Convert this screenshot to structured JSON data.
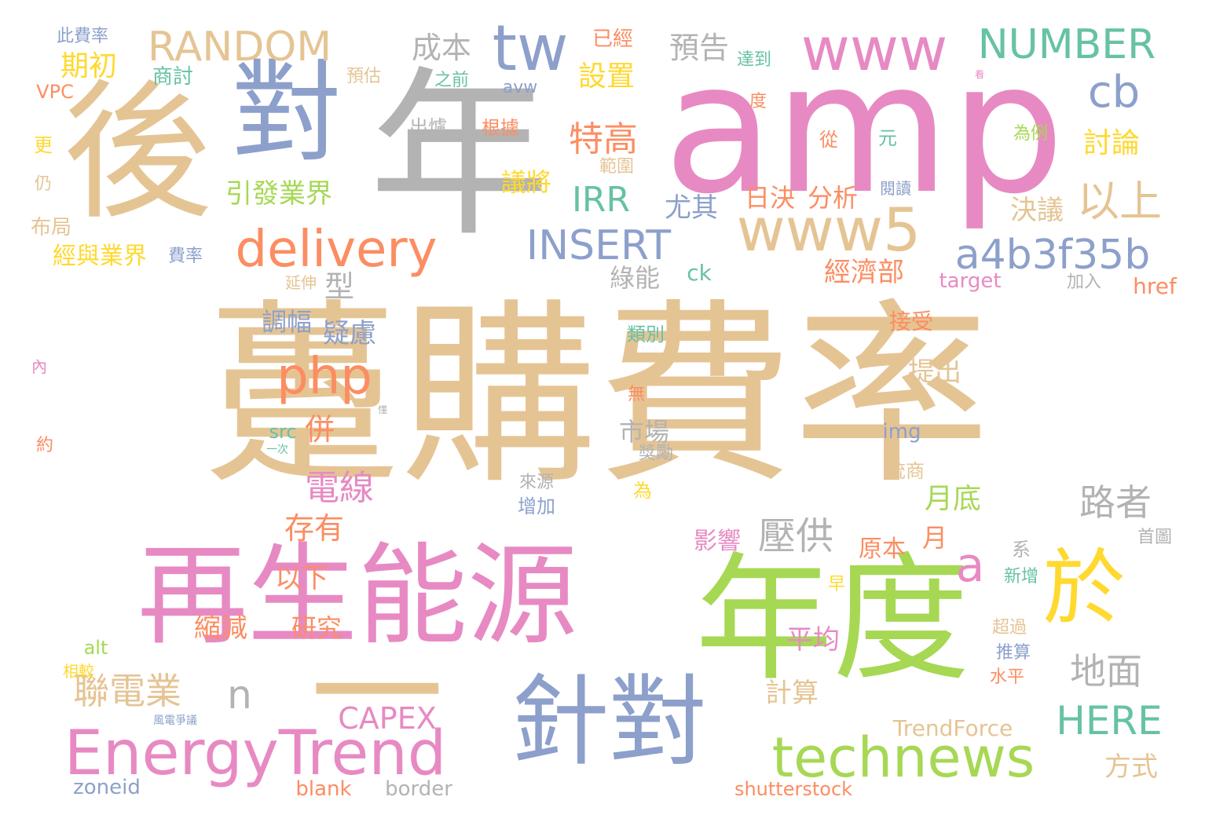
{
  "palette": {
    "tan": "#e5c494",
    "pink": "#e78ac3",
    "green": "#a6d854",
    "grey": "#b3b3b3",
    "blue": "#8da0cb",
    "orange": "#fc8d62",
    "yellow": "#ffd92f",
    "teal": "#66c2a5"
  },
  "words": [
    {
      "text": "躉購費率",
      "color": "tan",
      "rank": 1
    },
    {
      "text": "amp",
      "color": "pink",
      "rank": 2
    },
    {
      "text": "再生能源",
      "color": "pink",
      "rank": 3
    },
    {
      "text": "年",
      "color": "grey",
      "rank": 4
    },
    {
      "text": "年度",
      "color": "green",
      "rank": 5
    },
    {
      "text": "後",
      "color": "tan",
      "rank": 6
    },
    {
      "text": "一",
      "color": "tan",
      "rank": 7
    },
    {
      "text": "對",
      "color": "blue",
      "rank": 8
    },
    {
      "text": "針對",
      "color": "blue",
      "rank": 9
    },
    {
      "text": "於",
      "color": "yellow",
      "rank": 10
    },
    {
      "text": "EnergyTrend",
      "color": "pink",
      "rank": 11
    },
    {
      "text": "technews",
      "color": "green",
      "rank": 12
    },
    {
      "text": "www",
      "color": "pink",
      "rank": 13
    },
    {
      "text": "www5",
      "color": "tan",
      "rank": 14
    },
    {
      "text": "delivery",
      "color": "orange",
      "rank": 15
    },
    {
      "text": "tw",
      "color": "blue",
      "rank": 16
    },
    {
      "text": "RANDOM",
      "color": "tan",
      "rank": 17
    },
    {
      "text": "NUMBER",
      "color": "teal",
      "rank": 18
    },
    {
      "text": "a4b3f35b",
      "color": "blue",
      "rank": 19
    },
    {
      "text": "INSERT",
      "color": "blue",
      "rank": 20
    },
    {
      "text": "php",
      "color": "orange",
      "rank": 21
    },
    {
      "text": "以上",
      "color": "tan",
      "rank": 22
    },
    {
      "text": "HERE",
      "color": "teal",
      "rank": 23
    },
    {
      "text": "a",
      "color": "pink",
      "rank": 24
    },
    {
      "text": "cb",
      "color": "blue",
      "rank": 25
    },
    {
      "text": "IRR",
      "color": "teal",
      "rank": 26
    },
    {
      "text": "地面",
      "color": "grey",
      "rank": 27
    },
    {
      "text": "路者",
      "color": "grey",
      "rank": 28
    },
    {
      "text": "壓供",
      "color": "grey",
      "rank": 29
    },
    {
      "text": "特高",
      "color": "orange",
      "rank": 30
    },
    {
      "text": "電線",
      "color": "pink",
      "rank": 31
    },
    {
      "text": "聯電業",
      "color": "tan",
      "rank": 32
    },
    {
      "text": "n",
      "color": "grey",
      "rank": 33
    },
    {
      "text": "CAPEX",
      "color": "pink",
      "rank": 34
    },
    {
      "text": "成本",
      "color": "grey",
      "rank": 35
    },
    {
      "text": "預告",
      "color": "grey",
      "rank": 36
    },
    {
      "text": "設置",
      "color": "yellow",
      "rank": 37
    },
    {
      "text": "期初",
      "color": "yellow",
      "rank": 38
    },
    {
      "text": "引發業界",
      "color": "green",
      "rank": 39
    },
    {
      "text": "尤其",
      "color": "blue",
      "rank": 40
    },
    {
      "text": "型",
      "color": "grey",
      "rank": 41
    },
    {
      "text": "疑慮",
      "color": "blue",
      "rank": 42
    },
    {
      "text": "併",
      "color": "orange",
      "rank": 43
    },
    {
      "text": "存有",
      "color": "orange",
      "rank": 44
    },
    {
      "text": "以下",
      "color": "orange",
      "rank": 45
    },
    {
      "text": "月底",
      "color": "green",
      "rank": 46
    },
    {
      "text": "討論",
      "color": "yellow",
      "rank": 47
    },
    {
      "text": "決議",
      "color": "tan",
      "rank": 48
    },
    {
      "text": "經濟部",
      "color": "orange",
      "rank": 49
    },
    {
      "text": "日決",
      "color": "orange",
      "rank": 50
    },
    {
      "text": "分析",
      "color": "orange",
      "rank": 51
    },
    {
      "text": "議將",
      "color": "yellow",
      "rank": 52
    },
    {
      "text": "綠能",
      "color": "grey",
      "rank": 53
    },
    {
      "text": "調幅",
      "color": "blue",
      "rank": 54
    },
    {
      "text": "市場",
      "color": "grey",
      "rank": 55
    },
    {
      "text": "影響",
      "color": "pink",
      "rank": 56
    },
    {
      "text": "原本",
      "color": "orange",
      "rank": 57
    },
    {
      "text": "月",
      "color": "orange",
      "rank": 58
    },
    {
      "text": "縮減",
      "color": "orange",
      "rank": 59
    },
    {
      "text": "研究",
      "color": "orange",
      "rank": 60
    },
    {
      "text": "平均",
      "color": "pink",
      "rank": 61
    },
    {
      "text": "計算",
      "color": "tan",
      "rank": 62
    },
    {
      "text": "方式",
      "color": "tan",
      "rank": 63
    },
    {
      "text": "提出",
      "color": "tan",
      "rank": 64
    },
    {
      "text": "接受",
      "color": "orange",
      "rank": 65
    },
    {
      "text": "TrendForce",
      "color": "tan",
      "rank": 66
    },
    {
      "text": "經與業界",
      "color": "yellow",
      "rank": 67
    },
    {
      "text": "商討",
      "color": "teal",
      "rank": 68
    },
    {
      "text": "已經",
      "color": "orange",
      "rank": 69
    },
    {
      "text": "此費率",
      "color": "blue",
      "rank": 70
    },
    {
      "text": "預估",
      "color": "tan",
      "rank": 71
    },
    {
      "text": "之前",
      "color": "teal",
      "rank": 72
    },
    {
      "text": "達到",
      "color": "teal",
      "rank": 73
    },
    {
      "text": "avw",
      "color": "blue",
      "rank": 74
    },
    {
      "text": "出爐",
      "color": "grey",
      "rank": 75
    },
    {
      "text": "根據",
      "color": "orange",
      "rank": 76
    },
    {
      "text": "從",
      "color": "orange",
      "rank": 77
    },
    {
      "text": "元",
      "color": "teal",
      "rank": 78
    },
    {
      "text": "為例",
      "color": "green",
      "rank": 79
    },
    {
      "text": "範圍",
      "color": "tan",
      "rank": 80
    },
    {
      "text": "閱讀",
      "color": "blue",
      "rank": 81
    },
    {
      "text": "度",
      "color": "orange",
      "rank": 82
    },
    {
      "text": "看",
      "color": "pink",
      "rank": 83
    },
    {
      "text": "VPC",
      "color": "orange",
      "rank": 84
    },
    {
      "text": "更",
      "color": "yellow",
      "rank": 85
    },
    {
      "text": "仍",
      "color": "tan",
      "rank": 86
    },
    {
      "text": "布局",
      "color": "tan",
      "rank": 87
    },
    {
      "text": "費率",
      "color": "blue",
      "rank": 88
    },
    {
      "text": "延伸",
      "color": "tan",
      "rank": 89
    },
    {
      "text": "ck",
      "color": "teal",
      "rank": 90
    },
    {
      "text": "target",
      "color": "pink",
      "rank": 91
    },
    {
      "text": "加入",
      "color": "grey",
      "rank": 92
    },
    {
      "text": "href",
      "color": "orange",
      "rank": 93
    },
    {
      "text": "類別",
      "color": "teal",
      "rank": 94
    },
    {
      "text": "內",
      "color": "pink",
      "rank": 95
    },
    {
      "text": "無",
      "color": "orange",
      "rank": 96
    },
    {
      "text": "懂",
      "color": "grey",
      "rank": 97
    },
    {
      "text": "src",
      "color": "teal",
      "rank": 98
    },
    {
      "text": "一次",
      "color": "teal",
      "rank": 99
    },
    {
      "text": "img",
      "color": "blue",
      "rank": 100
    },
    {
      "text": "約",
      "color": "orange",
      "rank": 101
    },
    {
      "text": "獎勵",
      "color": "grey",
      "rank": 102
    },
    {
      "text": "統商",
      "color": "tan",
      "rank": 103
    },
    {
      "text": "為",
      "color": "yellow",
      "rank": 104
    },
    {
      "text": "來源",
      "color": "grey",
      "rank": 105
    },
    {
      "text": "增加",
      "color": "blue",
      "rank": 106
    },
    {
      "text": "系",
      "color": "grey",
      "rank": 107
    },
    {
      "text": "首圖",
      "color": "grey",
      "rank": 108
    },
    {
      "text": "新增",
      "color": "teal",
      "rank": 109
    },
    {
      "text": "早",
      "color": "yellow",
      "rank": 110
    },
    {
      "text": "超過",
      "color": "tan",
      "rank": 111
    },
    {
      "text": "alt",
      "color": "green",
      "rank": 112
    },
    {
      "text": "推算",
      "color": "blue",
      "rank": 113
    },
    {
      "text": "相較",
      "color": "yellow",
      "rank": 114
    },
    {
      "text": "水平",
      "color": "orange",
      "rank": 115
    },
    {
      "text": "風電爭議",
      "color": "blue",
      "rank": 116
    },
    {
      "text": "zoneid",
      "color": "blue",
      "rank": 117
    },
    {
      "text": "blank",
      "color": "orange",
      "rank": 118
    },
    {
      "text": "border",
      "color": "grey",
      "rank": 119
    },
    {
      "text": "shutterstock",
      "color": "orange",
      "rank": 120
    }
  ]
}
